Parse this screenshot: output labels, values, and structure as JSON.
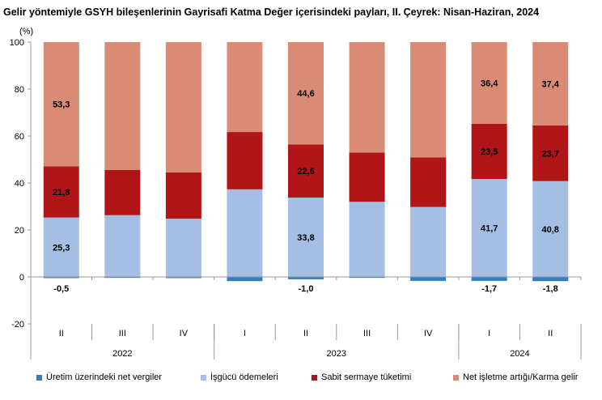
{
  "chart_data": {
    "type": "bar",
    "stacked": true,
    "title": "Gelir yöntemiyle GSYH bileşenlerinin Gayrisafi Katma Değer içerisindeki payları, II. Çeyrek: Nisan-Haziran, 2024",
    "ylabel": "(%)",
    "ylim": [
      -20,
      100
    ],
    "yticks": [
      "-20",
      "0",
      "20",
      "40",
      "60",
      "80",
      "100"
    ],
    "categories": [
      "II",
      "III",
      "IV",
      "I",
      "II",
      "III",
      "IV",
      "I",
      "II"
    ],
    "groups": [
      {
        "label": "2022",
        "count": 3
      },
      {
        "label": "2023",
        "count": 4
      },
      {
        "label": "2024",
        "count": 2
      }
    ],
    "series": [
      {
        "name": "Üretim üzerindeki net vergiler",
        "color": "#2e7fc4",
        "values": [
          -0.5,
          -0.4,
          -0.5,
          -1.8,
          -1.0,
          -0.4,
          -1.7,
          -1.7,
          -1.8
        ],
        "labels": [
          "-0,5",
          "",
          "",
          "",
          "-1,0",
          "",
          "",
          "-1,7",
          "-1,8"
        ]
      },
      {
        "name": "İşgücü ödemeleri",
        "color": "#a4bfe3",
        "values": [
          25.3,
          26.3,
          24.8,
          37.3,
          33.8,
          32.0,
          29.8,
          41.7,
          40.8
        ],
        "labels": [
          "25,3",
          "",
          "",
          "",
          "33,8",
          "",
          "",
          "41,7",
          "40,8"
        ]
      },
      {
        "name": "Sabit sermaye tüketimi",
        "color": "#b01518",
        "values": [
          21.8,
          19.3,
          19.7,
          24.4,
          22.6,
          21.0,
          21.1,
          23.5,
          23.7
        ],
        "labels": [
          "21,8",
          "",
          "",
          "",
          "22,6",
          "",
          "",
          "23,5",
          "23,7"
        ]
      },
      {
        "name": "Net işletme artığı/Karma gelir",
        "color": "#d98b76",
        "values": [
          53.3,
          54.8,
          56.0,
          40.1,
          44.6,
          47.4,
          50.8,
          36.4,
          37.4
        ],
        "labels": [
          "53,3",
          "",
          "",
          "",
          "44,6",
          "",
          "",
          "36,4",
          "37,4"
        ]
      }
    ],
    "grid": false,
    "legend": "bottom"
  }
}
